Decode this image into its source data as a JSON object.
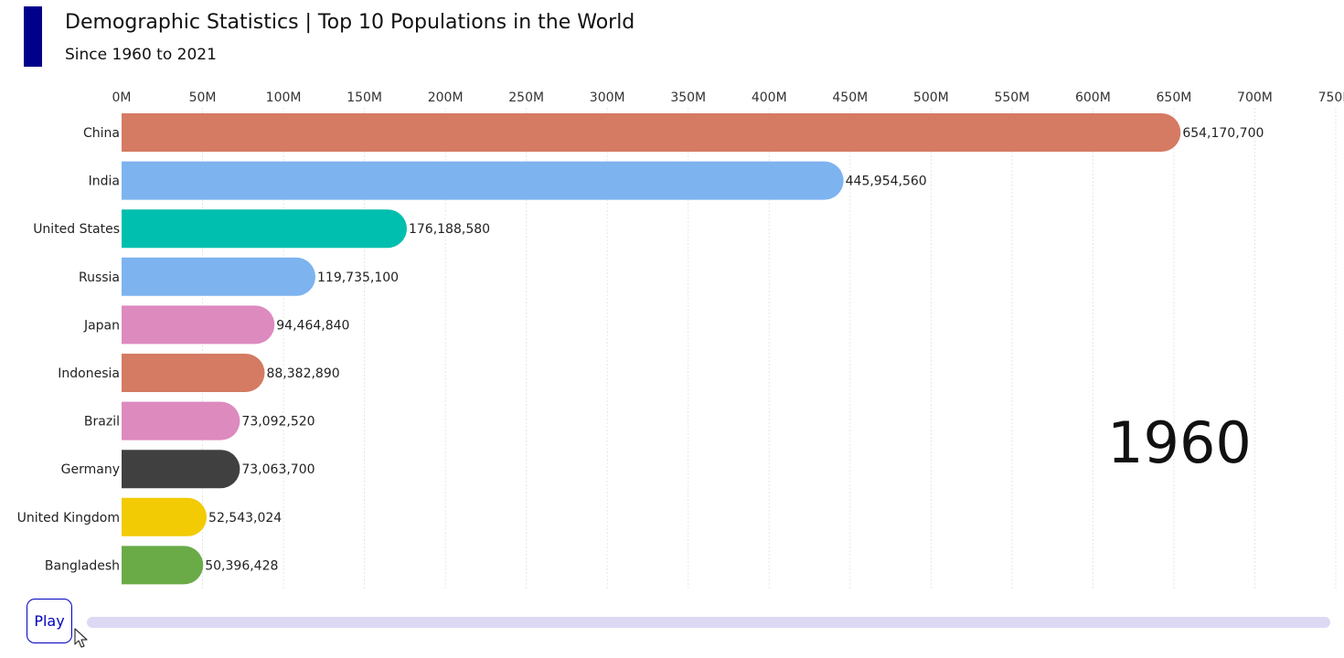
{
  "header": {
    "title": "Demographic Statistics | Top 10 Populations in the World",
    "subtitle": "Since 1960 to 2021"
  },
  "colors": {
    "accent": "#00008b",
    "grid": "#e6e6e6",
    "slider": "#ddd8f3",
    "play_border": "#0000c0"
  },
  "controls": {
    "play_label": "Play",
    "year": "1960"
  },
  "chart_data": {
    "type": "bar",
    "orientation": "horizontal",
    "xlim": [
      0,
      750000000
    ],
    "ticks": [
      0,
      50000000,
      100000000,
      150000000,
      200000000,
      250000000,
      300000000,
      350000000,
      400000000,
      450000000,
      500000000,
      550000000,
      600000000,
      650000000,
      700000000,
      750000000
    ],
    "tick_labels": [
      "0M",
      "50M",
      "100M",
      "150M",
      "200M",
      "250M",
      "300M",
      "350M",
      "400M",
      "450M",
      "500M",
      "550M",
      "600M",
      "650M",
      "700M",
      "750M"
    ],
    "grid": true,
    "bars": [
      {
        "name": "China",
        "value": 654170700,
        "label": "654,170,700",
        "color": "#d57a63"
      },
      {
        "name": "India",
        "value": 445954560,
        "label": "445,954,560",
        "color": "#7db3ef"
      },
      {
        "name": "United States",
        "value": 176188580,
        "label": "176,188,580",
        "color": "#00bfae"
      },
      {
        "name": "Russia",
        "value": 119735100,
        "label": "119,735,100",
        "color": "#7db3ef"
      },
      {
        "name": "Japan",
        "value": 94464840,
        "label": "94,464,840",
        "color": "#dd8abf"
      },
      {
        "name": "Indonesia",
        "value": 88382890,
        "label": "88,382,890",
        "color": "#d57a63"
      },
      {
        "name": "Brazil",
        "value": 73092520,
        "label": "73,092,520",
        "color": "#dd8abf"
      },
      {
        "name": "Germany",
        "value": 73063700,
        "label": "73,063,700",
        "color": "#404040"
      },
      {
        "name": "United Kingdom",
        "value": 52543024,
        "label": "52,543,024",
        "color": "#f2cb05"
      },
      {
        "name": "Bangladesh",
        "value": 50396428,
        "label": "50,396,428",
        "color": "#6aab48"
      }
    ]
  }
}
